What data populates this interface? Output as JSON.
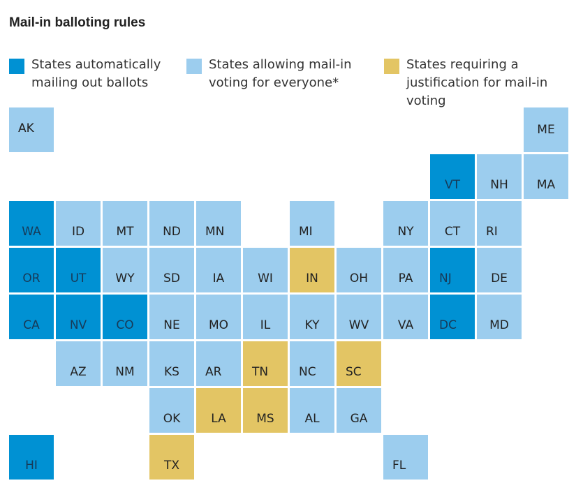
{
  "title": "Mail-in balloting rules",
  "colors": {
    "auto": "#0091d3",
    "allowing": "#9ccdee",
    "justification": "#e3c564"
  },
  "legend": [
    {
      "key": "auto",
      "label": "States automatically mailing out ballots"
    },
    {
      "key": "allowing",
      "label": "States allowing mail-in voting for everyone*"
    },
    {
      "key": "justification",
      "label": "States requiring a justification for mail-in voting"
    }
  ],
  "states": [
    {
      "abbr": "AK",
      "category": "allowing"
    },
    {
      "abbr": "ME",
      "category": "allowing"
    },
    {
      "abbr": "VT",
      "category": "auto"
    },
    {
      "abbr": "NH",
      "category": "allowing"
    },
    {
      "abbr": "MA",
      "category": "allowing"
    },
    {
      "abbr": "WA",
      "category": "auto"
    },
    {
      "abbr": "ID",
      "category": "allowing"
    },
    {
      "abbr": "MT",
      "category": "allowing"
    },
    {
      "abbr": "ND",
      "category": "allowing"
    },
    {
      "abbr": "MN",
      "category": "allowing"
    },
    {
      "abbr": "MI",
      "category": "allowing"
    },
    {
      "abbr": "NY",
      "category": "allowing"
    },
    {
      "abbr": "CT",
      "category": "allowing"
    },
    {
      "abbr": "RI",
      "category": "allowing"
    },
    {
      "abbr": "OR",
      "category": "auto"
    },
    {
      "abbr": "UT",
      "category": "auto"
    },
    {
      "abbr": "WY",
      "category": "allowing"
    },
    {
      "abbr": "SD",
      "category": "allowing"
    },
    {
      "abbr": "IA",
      "category": "allowing"
    },
    {
      "abbr": "WI",
      "category": "allowing"
    },
    {
      "abbr": "IN",
      "category": "justification"
    },
    {
      "abbr": "OH",
      "category": "allowing"
    },
    {
      "abbr": "PA",
      "category": "allowing"
    },
    {
      "abbr": "NJ",
      "category": "auto"
    },
    {
      "abbr": "DE",
      "category": "allowing"
    },
    {
      "abbr": "CA",
      "category": "auto"
    },
    {
      "abbr": "NV",
      "category": "auto"
    },
    {
      "abbr": "CO",
      "category": "auto"
    },
    {
      "abbr": "NE",
      "category": "allowing"
    },
    {
      "abbr": "MO",
      "category": "allowing"
    },
    {
      "abbr": "IL",
      "category": "allowing"
    },
    {
      "abbr": "KY",
      "category": "allowing"
    },
    {
      "abbr": "WV",
      "category": "allowing"
    },
    {
      "abbr": "VA",
      "category": "allowing"
    },
    {
      "abbr": "DC",
      "category": "auto"
    },
    {
      "abbr": "MD",
      "category": "allowing"
    },
    {
      "abbr": "AZ",
      "category": "allowing"
    },
    {
      "abbr": "NM",
      "category": "allowing"
    },
    {
      "abbr": "KS",
      "category": "allowing"
    },
    {
      "abbr": "AR",
      "category": "allowing"
    },
    {
      "abbr": "TN",
      "category": "justification"
    },
    {
      "abbr": "NC",
      "category": "allowing"
    },
    {
      "abbr": "SC",
      "category": "justification"
    },
    {
      "abbr": "OK",
      "category": "allowing"
    },
    {
      "abbr": "LA",
      "category": "justification"
    },
    {
      "abbr": "MS",
      "category": "justification"
    },
    {
      "abbr": "AL",
      "category": "allowing"
    },
    {
      "abbr": "GA",
      "category": "allowing"
    },
    {
      "abbr": "HI",
      "category": "auto"
    },
    {
      "abbr": "TX",
      "category": "justification"
    },
    {
      "abbr": "FL",
      "category": "allowing"
    }
  ]
}
